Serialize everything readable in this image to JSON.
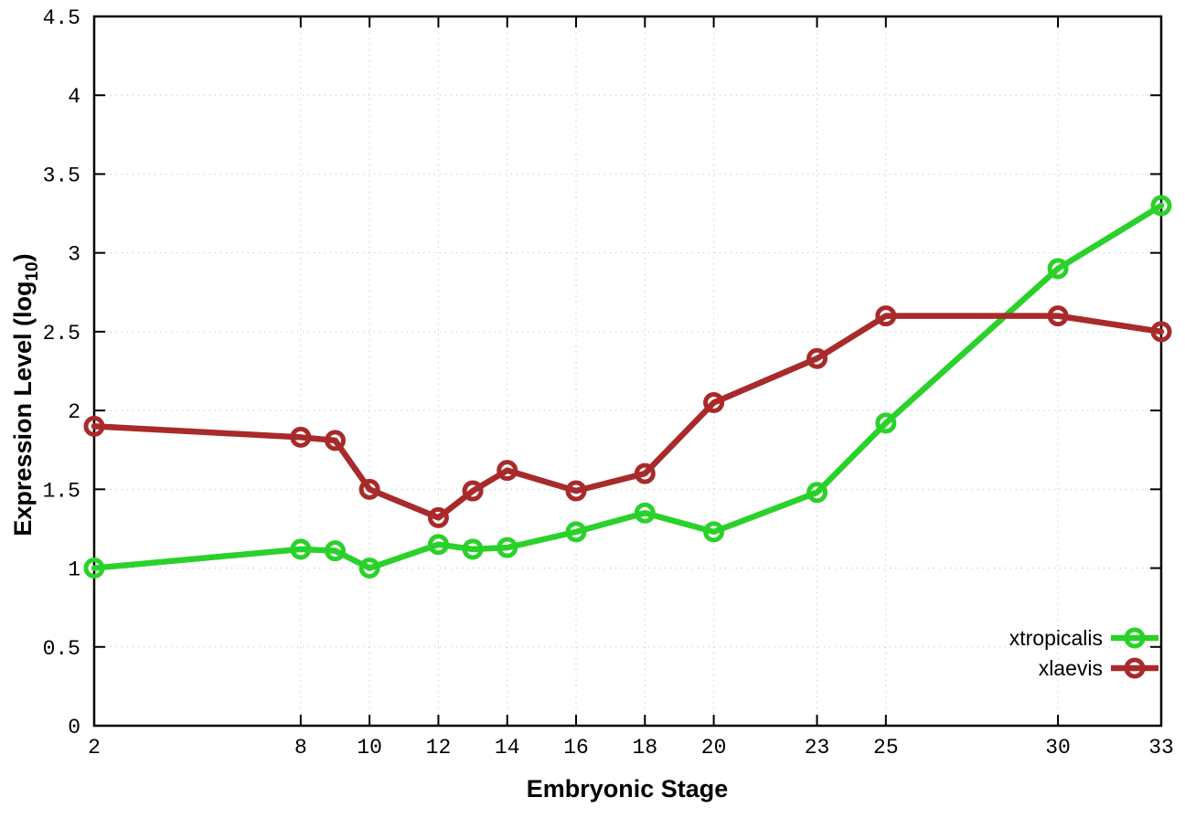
{
  "figure": {
    "ylabel_prefix": "Expression Level (log",
    "ylabel_sub": "10",
    "ylabel_suffix": ")"
  },
  "chart_data": {
    "type": "line",
    "title": "",
    "xlabel": "Embryonic Stage",
    "ylabel": "Expression Level (log10)",
    "x": [
      2,
      8,
      9,
      10,
      12,
      13,
      14,
      16,
      18,
      20,
      23,
      25,
      30,
      33
    ],
    "series": [
      {
        "name": "xtropicalis",
        "color": "#2bd12b",
        "values": [
          1.0,
          1.12,
          1.11,
          1.0,
          1.15,
          1.12,
          1.13,
          1.23,
          1.35,
          1.23,
          1.48,
          1.92,
          2.9,
          3.3
        ]
      },
      {
        "name": "xlaevis",
        "color": "#a82a2a",
        "values": [
          1.9,
          1.83,
          1.81,
          1.5,
          1.32,
          1.49,
          1.62,
          1.49,
          1.6,
          2.05,
          2.33,
          2.6,
          2.6,
          2.5
        ]
      }
    ],
    "xticks": [
      2,
      8,
      10,
      12,
      14,
      16,
      18,
      20,
      23,
      25,
      30,
      33
    ],
    "yticks": [
      0,
      0.5,
      1,
      1.5,
      2,
      2.5,
      3,
      3.5,
      4,
      4.5
    ],
    "xlim": [
      2,
      33
    ],
    "ylim": [
      0,
      4.5
    ],
    "grid": true,
    "legend_position": "bottom-right-inside",
    "colors": {
      "axis": "#000000",
      "grid": "#bfbfbf",
      "background": "#ffffff"
    }
  }
}
